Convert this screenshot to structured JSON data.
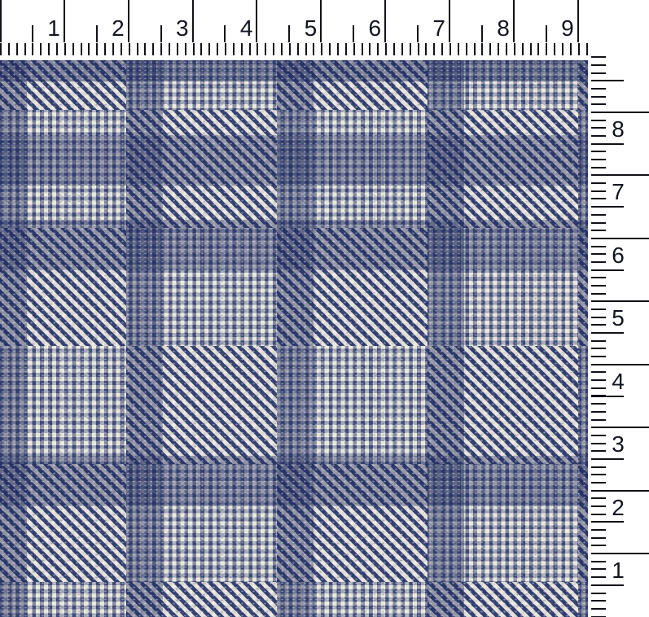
{
  "photo": {
    "subject": "fabric-swatch",
    "fabric": {
      "pattern": "glen-plaid-houndstooth",
      "colors": {
        "navy": "#31407a",
        "navy_dark": "#202c5f",
        "cream": "#ece9dc",
        "gray": "#c9c9c3"
      }
    }
  },
  "rulers": {
    "unit": "inch-ruler",
    "line_color": "#101218",
    "background": "#ffffff",
    "top": {
      "unit_numbers": [
        "1",
        "2",
        "3",
        "4",
        "5",
        "6",
        "7",
        "8",
        "9"
      ]
    },
    "right": {
      "unit_numbers": [
        "8",
        "7",
        "6",
        "5",
        "4",
        "3",
        "2",
        "1"
      ]
    }
  }
}
